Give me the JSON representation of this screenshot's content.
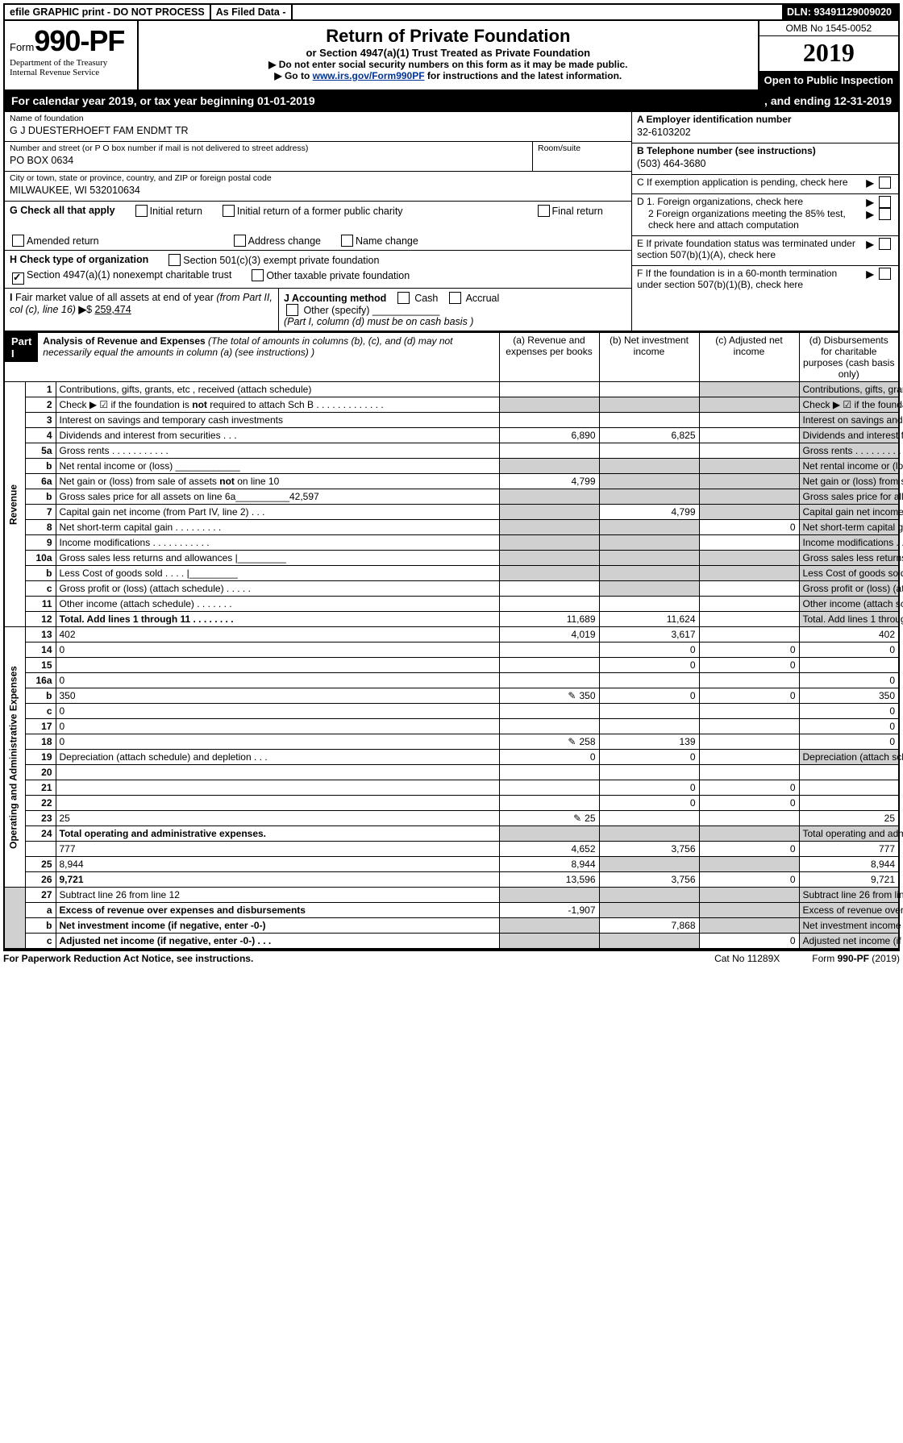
{
  "topbar": {
    "efile": "efile GRAPHIC print - DO NOT PROCESS",
    "asfiled": "As Filed Data -",
    "dln_label": "DLN:",
    "dln": "93491129009020"
  },
  "form": {
    "form_word": "Form",
    "form_number": "990-PF",
    "dept1": "Department of the Treasury",
    "dept2": "Internal Revenue Service",
    "title": "Return of Private Foundation",
    "subtitle": "or Section 4947(a)(1) Trust Treated as Private Foundation",
    "instr1": "▶ Do not enter social security numbers on this form as it may be made public.",
    "instr2_pre": "▶ Go to ",
    "instr2_link": "www.irs.gov/Form990PF",
    "instr2_post": " for instructions and the latest information.",
    "omb": "OMB No 1545-0052",
    "year": "2019",
    "open": "Open to Public Inspection"
  },
  "calyear": {
    "left": "For calendar year 2019, or tax year beginning 01-01-2019",
    "mid": "",
    "right": ", and ending 12-31-2019"
  },
  "left": {
    "name_lbl": "Name of foundation",
    "name_val": "G J DUESTERHOEFT FAM ENDMT TR",
    "addr_lbl": "Number and street (or P O  box number if mail is not delivered to street address)",
    "addr_val": "PO BOX 0634",
    "room_lbl": "Room/suite",
    "city_lbl": "City or town, state or province, country, and ZIP or foreign postal code",
    "city_val": "MILWAUKEE, WI  532010634",
    "g_lbl": "G Check all that apply",
    "g_opts": [
      "Initial return",
      "Initial return of a former public charity",
      "Final return",
      "Amended return",
      "Address change",
      "Name change"
    ],
    "h_lbl": "H Check type of organization",
    "h_opt1": "Section 501(c)(3) exempt private foundation",
    "h_opt2": "Section 4947(a)(1) nonexempt charitable trust",
    "h_opt3": "Other taxable private foundation",
    "i_lbl": "I Fair market value of all assets at end of year (from Part II, col  (c), line 16) ▶$ ",
    "i_val": "259,474",
    "j_lbl": "J Accounting method",
    "j_cash": "Cash",
    "j_accr": "Accrual",
    "j_other": "Other (specify)",
    "j_note": "(Part I, column (d) must be on cash basis )"
  },
  "right": {
    "a_lbl": "A Employer identification number",
    "a_val": "32-6103202",
    "b_lbl": "B Telephone number (see instructions)",
    "b_val": "(503) 464-3680",
    "c_lbl": "C  If exemption application is pending, check here",
    "d1": "D 1. Foreign organizations, check here",
    "d2": "2  Foreign organizations meeting the 85% test, check here and attach computation",
    "e": "E   If private foundation status was terminated under section 507(b)(1)(A), check here",
    "f": "F   If the foundation is in a 60-month termination under section 507(b)(1)(B), check here"
  },
  "part1": {
    "label": "Part I",
    "title": "Analysis of Revenue and Expenses",
    "title_note": " (The total of amounts in columns (b), (c), and (d) may not necessarily equal the amounts in column (a) (see instructions) )",
    "col_a": "(a)    Revenue and expenses per books",
    "col_b": "(b)   Net investment income",
    "col_c": "(c)   Adjusted net income",
    "col_d": "(d)   Disbursements for charitable purposes (cash basis only)"
  },
  "revenue_label": "Revenue",
  "expense_label": "Operating and Administrative Expenses",
  "rows": [
    {
      "sec": "rev",
      "n": "1",
      "d": "Contributions, gifts, grants, etc , received (attach schedule)",
      "a": "",
      "b": "",
      "c_shade": true,
      "d_shade": true
    },
    {
      "sec": "rev",
      "n": "2",
      "d": "Check ▶ ☑ if the foundation is not required to attach Sch  B      .   .   .   .   .   .   .   .   .   .   .   .   .",
      "a_shade": true,
      "b_shade": true,
      "c_shade": true,
      "d_shade": true
    },
    {
      "sec": "rev",
      "n": "3",
      "d": "Interest on savings and temporary cash investments",
      "a": "",
      "b": "",
      "c": "",
      "d_shade": true
    },
    {
      "sec": "rev",
      "n": "4",
      "d": "Dividends and interest from securities      .   .   .",
      "a": "6,890",
      "b": "6,825",
      "c": "",
      "d_shade": true
    },
    {
      "sec": "rev",
      "n": "5a",
      "d": "Gross rents      .   .   .   .   .   .   .   .   .   .   .",
      "a": "",
      "b": "",
      "c": "",
      "d_shade": true
    },
    {
      "sec": "rev",
      "n": "b",
      "d": "Net rental income or (loss)  ____________",
      "a_shade": true,
      "b_shade": true,
      "c_shade": true,
      "d_shade": true
    },
    {
      "sec": "rev",
      "n": "6a",
      "d": "Net gain or (loss) from sale of assets not on line 10",
      "a": "4,799",
      "b_shade": true,
      "c_shade": true,
      "d_shade": true
    },
    {
      "sec": "rev",
      "n": "b",
      "d": "Gross sales price for all assets on line 6a__________42,597",
      "a_shade": true,
      "b_shade": true,
      "c_shade": true,
      "d_shade": true
    },
    {
      "sec": "rev",
      "n": "7",
      "d": "Capital gain net income (from Part IV, line 2)   .   .   .",
      "a_shade": true,
      "b": "4,799",
      "c_shade": true,
      "d_shade": true
    },
    {
      "sec": "rev",
      "n": "8",
      "d": "Net short-term capital gain  .   .   .   .   .   .   .   .   .",
      "a_shade": true,
      "b_shade": true,
      "c": "0",
      "d_shade": true
    },
    {
      "sec": "rev",
      "n": "9",
      "d": "Income modifications .   .   .   .   .   .   .   .   .   .   .",
      "a_shade": true,
      "b_shade": true,
      "c": "",
      "d_shade": true
    },
    {
      "sec": "rev",
      "n": "10a",
      "d": "Gross sales less returns and allowances |_________",
      "a_shade": true,
      "b_shade": true,
      "c_shade": true,
      "d_shade": true
    },
    {
      "sec": "rev",
      "n": "b",
      "d": "Less   Cost of goods sold     .   .   .   .  |_________",
      "a_shade": true,
      "b_shade": true,
      "c_shade": true,
      "d_shade": true
    },
    {
      "sec": "rev",
      "n": "c",
      "d": "Gross profit or (loss) (attach schedule)    .   .   .   .   .",
      "a": "",
      "b_shade": true,
      "c": "",
      "d_shade": true
    },
    {
      "sec": "rev",
      "n": "11",
      "d": "Other income (attach schedule)     .   .   .   .   .   .   .",
      "a": "",
      "b": "",
      "c": "",
      "d_shade": true
    },
    {
      "sec": "rev",
      "n": "12",
      "d": "Total. Add lines 1 through 11    .   .   .   .   .   .   .   .",
      "bold": true,
      "a": "11,689",
      "b": "11,624",
      "c": "",
      "d_shade": true
    },
    {
      "sec": "exp",
      "n": "13",
      "d": "402",
      "a": "4,019",
      "b": "3,617",
      "c": ""
    },
    {
      "sec": "exp",
      "n": "14",
      "d": "0",
      "a": "",
      "b": "0",
      "c": "0"
    },
    {
      "sec": "exp",
      "n": "15",
      "d": "",
      "a": "",
      "b": "0",
      "c": "0"
    },
    {
      "sec": "exp",
      "n": "16a",
      "d": "0",
      "a": "",
      "b": "",
      "c": ""
    },
    {
      "sec": "exp",
      "n": "b",
      "d": "350",
      "pen": true,
      "a": "350",
      "b": "0",
      "c": "0"
    },
    {
      "sec": "exp",
      "n": "c",
      "d": "0",
      "a": "",
      "b": "",
      "c": ""
    },
    {
      "sec": "exp",
      "n": "17",
      "d": "0",
      "a": "",
      "b": "",
      "c": ""
    },
    {
      "sec": "exp",
      "n": "18",
      "d": "0",
      "pen": true,
      "a": "258",
      "b": "139",
      "c": ""
    },
    {
      "sec": "exp",
      "n": "19",
      "d": "Depreciation (attach schedule) and depletion   .   .   .",
      "a": "0",
      "b": "0",
      "c": "",
      "d_shade": true
    },
    {
      "sec": "exp",
      "n": "20",
      "d": "",
      "a": "",
      "b": "",
      "c": ""
    },
    {
      "sec": "exp",
      "n": "21",
      "d": "",
      "a": "",
      "b": "0",
      "c": "0"
    },
    {
      "sec": "exp",
      "n": "22",
      "d": "",
      "a": "",
      "b": "0",
      "c": "0"
    },
    {
      "sec": "exp",
      "n": "23",
      "d": "25",
      "pen": true,
      "a": "25",
      "b": "",
      "c": ""
    },
    {
      "sec": "exp",
      "n": "24",
      "d": "Total operating and administrative expenses.",
      "bold": true,
      "a_shade": true,
      "b_shade": true,
      "c_shade": true,
      "d_shade": true
    },
    {
      "sec": "exp",
      "n": "",
      "d": "777",
      "a": "4,652",
      "b": "3,756",
      "c": "0"
    },
    {
      "sec": "exp",
      "n": "25",
      "d": "8,944",
      "a": "8,944",
      "b_shade": true,
      "c_shade": true
    },
    {
      "sec": "exp",
      "n": "26",
      "d": "9,721",
      "bold": true,
      "a": "13,596",
      "b": "3,756",
      "c": "0"
    },
    {
      "sec": "net",
      "n": "27",
      "d": "Subtract line 26 from line 12",
      "a_shade": true,
      "b_shade": true,
      "c_shade": true,
      "d_shade": true
    },
    {
      "sec": "net",
      "n": "a",
      "d": "Excess of revenue over expenses and disbursements",
      "bold": true,
      "a": "-1,907",
      "b_shade": true,
      "c_shade": true,
      "d_shade": true
    },
    {
      "sec": "net",
      "n": "b",
      "d": "Net investment income (if negative, enter -0-)",
      "bold": true,
      "a_shade": true,
      "b": "7,868",
      "c_shade": true,
      "d_shade": true
    },
    {
      "sec": "net",
      "n": "c",
      "d": "Adjusted net income (if negative, enter -0-)   .   .   .",
      "bold": true,
      "a_shade": true,
      "b_shade": true,
      "c": "0",
      "d_shade": true
    }
  ],
  "footer": {
    "f1": "For Paperwork Reduction Act Notice, see instructions.",
    "f2": "Cat  No  11289X",
    "f3": "Form 990-PF (2019)"
  }
}
